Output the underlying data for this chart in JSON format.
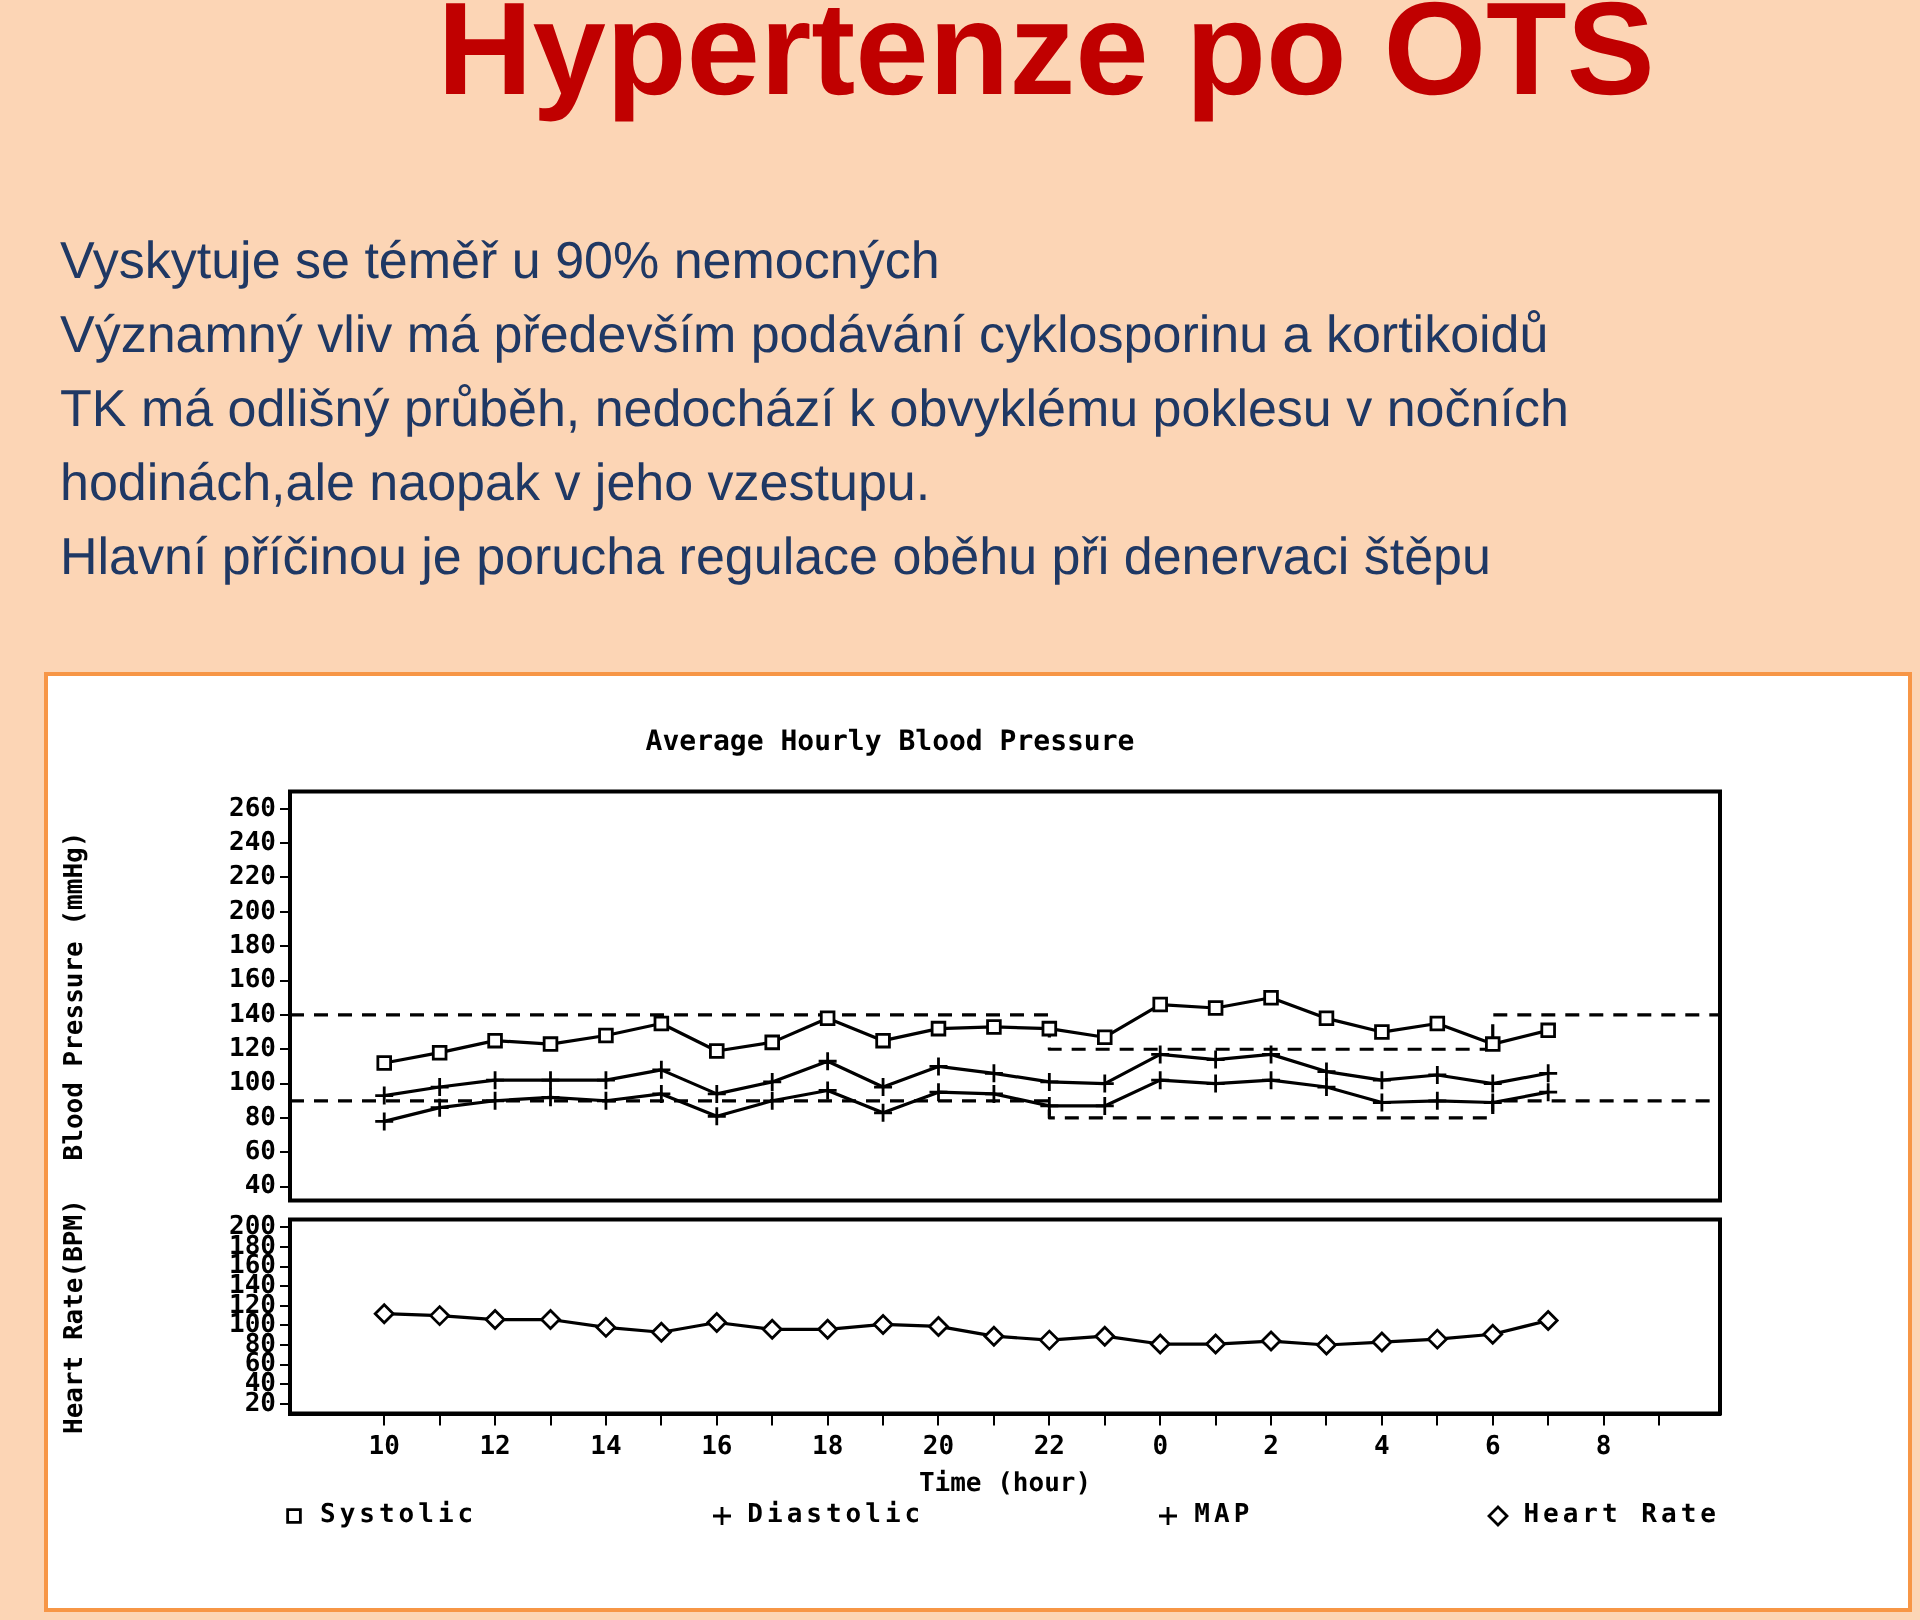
{
  "chart_data": [
    {
      "type": "other",
      "title": "Hypertenze po OTS",
      "annotations": [
        "Vyskytuje se téměř u 90% nemocných",
        "Významný vliv má především podávání cyklosporinu  a kortikoidů",
        "TK má odlišný průběh, nedochází k obvyklému poklesu v nočních hodinách,ale naopak v jeho vzestupu.",
        "Hlavní příčinou je porucha regulace oběhu při denervaci štěpu"
      ]
    },
    {
      "type": "line",
      "title": "Average Hourly Blood Pressure",
      "ylabel": "Blood Pressure (mmHg)",
      "xlim": [
        "--01-01T08:18",
        "--01-02T10:06"
      ],
      "ylim": [
        32,
        270
      ],
      "yticks": [
        40,
        60,
        80,
        100,
        120,
        140,
        160,
        180,
        200,
        220,
        240,
        260
      ],
      "tick_labels": "y",
      "grid": false,
      "legend": "bottom",
      "line_style": "solid",
      "x": [
        "--01-01T10:00",
        "--01-01T11:00",
        "--01-01T12:00",
        "--01-01T13:00",
        "--01-01T14:00",
        "--01-01T15:00",
        "--01-01T16:00",
        "--01-01T17:00",
        "--01-01T18:00",
        "--01-01T19:00",
        "--01-01T20:00",
        "--01-01T21:00",
        "--01-01T22:00",
        "--01-01T23:00",
        "--01-02T00:00",
        "--01-02T01:00",
        "--01-02T02:00",
        "--01-02T03:00",
        "--01-02T04:00",
        "--01-02T05:00",
        "--01-02T06:00",
        "--01-02T07:00"
      ],
      "series": [
        {
          "name": "Systolic",
          "color": "#000000",
          "marker": "square",
          "values": [
            112,
            118,
            125,
            123,
            128,
            135,
            119,
            124,
            138,
            125,
            132,
            133,
            132,
            127,
            146,
            144,
            150,
            138,
            130,
            135,
            123,
            131
          ]
        },
        {
          "name": "Diastolic",
          "color": "#000000",
          "marker": "cross",
          "values": [
            78,
            86,
            90,
            92,
            90,
            94,
            81,
            90,
            96,
            83,
            95,
            94,
            87,
            87,
            102,
            100,
            102,
            98,
            89,
            90,
            89,
            95
          ]
        },
        {
          "name": "MAP",
          "color": "#000000",
          "marker": "cross",
          "values": [
            93,
            98,
            102,
            102,
            102,
            108,
            94,
            101,
            113,
            98,
            110,
            106,
            101,
            100,
            117,
            114,
            117,
            107,
            102,
            105,
            100,
            106
          ]
        },
        {
          "type": "step",
          "color": "#000000",
          "marker": "none",
          "line_style": "dashed",
          "x": [
            "--01-01T08:18",
            "--01-01T22:00",
            "--01-02T06:00",
            "--01-02T10:06"
          ],
          "values": [
            140,
            120,
            140,
            140
          ]
        },
        {
          "type": "step",
          "color": "#000000",
          "marker": "none",
          "line_style": "dashed",
          "x": [
            "--01-01T08:18",
            "--01-01T22:00",
            "--01-02T06:00",
            "--01-02T10:06"
          ],
          "values": [
            90,
            80,
            90,
            90
          ]
        }
      ]
    },
    {
      "type": "line",
      "xlabel": "Time (hour)",
      "ylabel": "Heart Rate(BPM)",
      "xlim": [
        "--01-01T08:18",
        "--01-02T10:06"
      ],
      "ylim": [
        10,
        208
      ],
      "yticks": [
        20,
        40,
        60,
        80,
        100,
        120,
        140,
        160,
        180,
        200
      ],
      "xticks": [
        {
          "value": "--01-01T10:00",
          "label": "10"
        },
        {
          "value": "--01-01T11:00",
          "label": null
        },
        {
          "value": "--01-01T12:00",
          "label": "12"
        },
        {
          "value": "--01-01T13:00",
          "label": null
        },
        {
          "value": "--01-01T14:00",
          "label": "14"
        },
        {
          "value": "--01-01T15:00",
          "label": null
        },
        {
          "value": "--01-01T16:00",
          "label": "16"
        },
        {
          "value": "--01-01T17:00",
          "label": null
        },
        {
          "value": "--01-01T18:00",
          "label": "18"
        },
        {
          "value": "--01-01T19:00",
          "label": null
        },
        {
          "value": "--01-01T20:00",
          "label": "20"
        },
        {
          "value": "--01-01T21:00",
          "label": null
        },
        {
          "value": "--01-01T22:00",
          "label": "22"
        },
        {
          "value": "--01-01T23:00",
          "label": null
        },
        {
          "value": "--01-02T00:00",
          "label": "0"
        },
        {
          "value": "--01-02T01:00",
          "label": null
        },
        {
          "value": "--01-02T02:00",
          "label": "2"
        },
        {
          "value": "--01-02T03:00",
          "label": null
        },
        {
          "value": "--01-02T04:00",
          "label": "4"
        },
        {
          "value": "--01-02T05:00",
          "label": null
        },
        {
          "value": "--01-02T06:00",
          "label": "6"
        },
        {
          "value": "--01-02T07:00",
          "label": null
        },
        {
          "value": "--01-02T08:00",
          "label": "8"
        },
        {
          "value": "--01-02T09:00",
          "label": null
        }
      ],
      "grid": false,
      "legend": "bottom",
      "line_style": "solid",
      "marker": "diamond",
      "x": [
        "--01-01T10:00",
        "--01-01T11:00",
        "--01-01T12:00",
        "--01-01T13:00",
        "--01-01T14:00",
        "--01-01T15:00",
        "--01-01T16:00",
        "--01-01T17:00",
        "--01-01T18:00",
        "--01-01T19:00",
        "--01-01T20:00",
        "--01-01T21:00",
        "--01-01T22:00",
        "--01-01T23:00",
        "--01-02T00:00",
        "--01-02T01:00",
        "--01-02T02:00",
        "--01-02T03:00",
        "--01-02T04:00",
        "--01-02T05:00",
        "--01-02T06:00",
        "--01-02T07:00"
      ],
      "series": [
        {
          "name": "Heart Rate",
          "color": "#000000",
          "values": [
            112,
            110,
            106,
            106,
            98,
            93,
            103,
            96,
            96,
            101,
            99,
            89,
            85,
            89,
            81,
            81,
            84,
            80,
            83,
            86,
            91,
            105
          ]
        }
      ]
    }
  ]
}
